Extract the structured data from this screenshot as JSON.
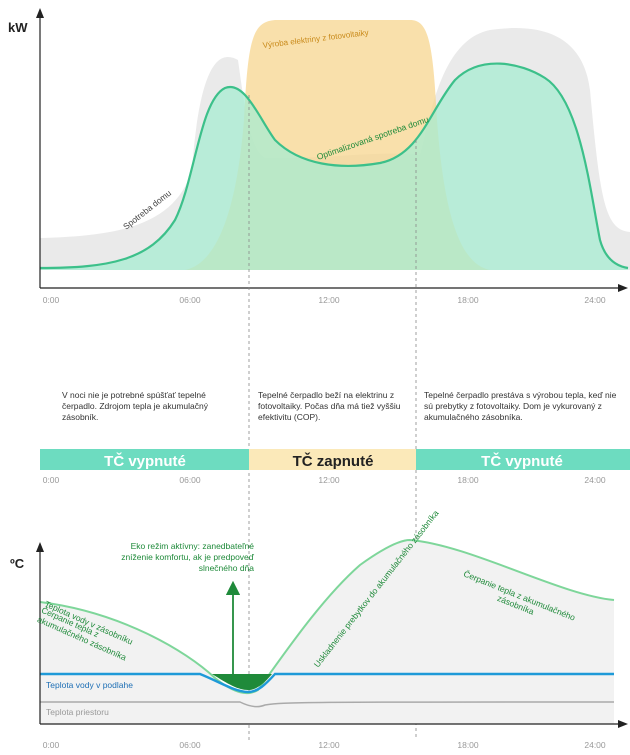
{
  "colors": {
    "green_line": "#3cc08a",
    "green_fill": "#a7ecd2",
    "green_text": "#1f8a3a",
    "solar_fill": "#f6d38a",
    "solar_text": "#c98a1a",
    "household_fill": "#e9e9e9",
    "band_off": "#6ddcc0",
    "band_on": "#fbe9b9",
    "floor_blue": "#1e9ad8",
    "room_gray": "#aaaaaa",
    "axis": "#222222",
    "tick_text": "#999999",
    "dashed": "#888888"
  },
  "top_chart": {
    "y_axis_label": "kW",
    "x_ticks": [
      "0:00",
      "06:00",
      "12:00",
      "18:00",
      "24:00"
    ],
    "label_household": "Spotreba domu",
    "label_solar": "Výroba elektriny z fotovoltaiky",
    "label_optimized": "Optimalizovaná spotreba domu"
  },
  "notes": {
    "night": "V noci nie je potrebné spúšťať tepelné čerpadlo. Zdrojom tepla je akumulačný zásobník.",
    "day": "Tepelné čerpadlo beží na elektrinu z fotovoltaiky. Počas dňa má tiež vyššiu efektivitu (COP).",
    "evening": "Tepelné čerpadlo prestáva s výrobou tepla, keď nie sú prebytky z fotovoltaiky. Dom je vykurovaný z akumulačného zásobníka."
  },
  "status_band": {
    "off_left": "TČ vypnuté",
    "on": "TČ zapnuté",
    "off_right": "TČ vypnuté",
    "x_ticks": [
      "0:00",
      "06:00",
      "12:00",
      "18:00",
      "24:00"
    ]
  },
  "bottom_chart": {
    "y_axis_label": "ºC",
    "x_ticks": [
      "0:00",
      "06:00",
      "12:00",
      "18:00",
      "24:00"
    ],
    "eco_note": "Eko režim aktívny: zanedbateľné zníženie komfortu, ak je predpoveď slnečného dňa",
    "label_tank_water": "Teplota vody v zásobníku",
    "label_draw_left": "Čerpanie tepla z akumulačného zásobníka",
    "label_storing": "Uskladnenie prebytkov do akumulačného zásobníka",
    "label_draw_right": "Čerpanie tepla z akumulačného zásobníka",
    "label_floor": "Teplota vody v podlahe",
    "label_room": "Teplota priestoru"
  }
}
